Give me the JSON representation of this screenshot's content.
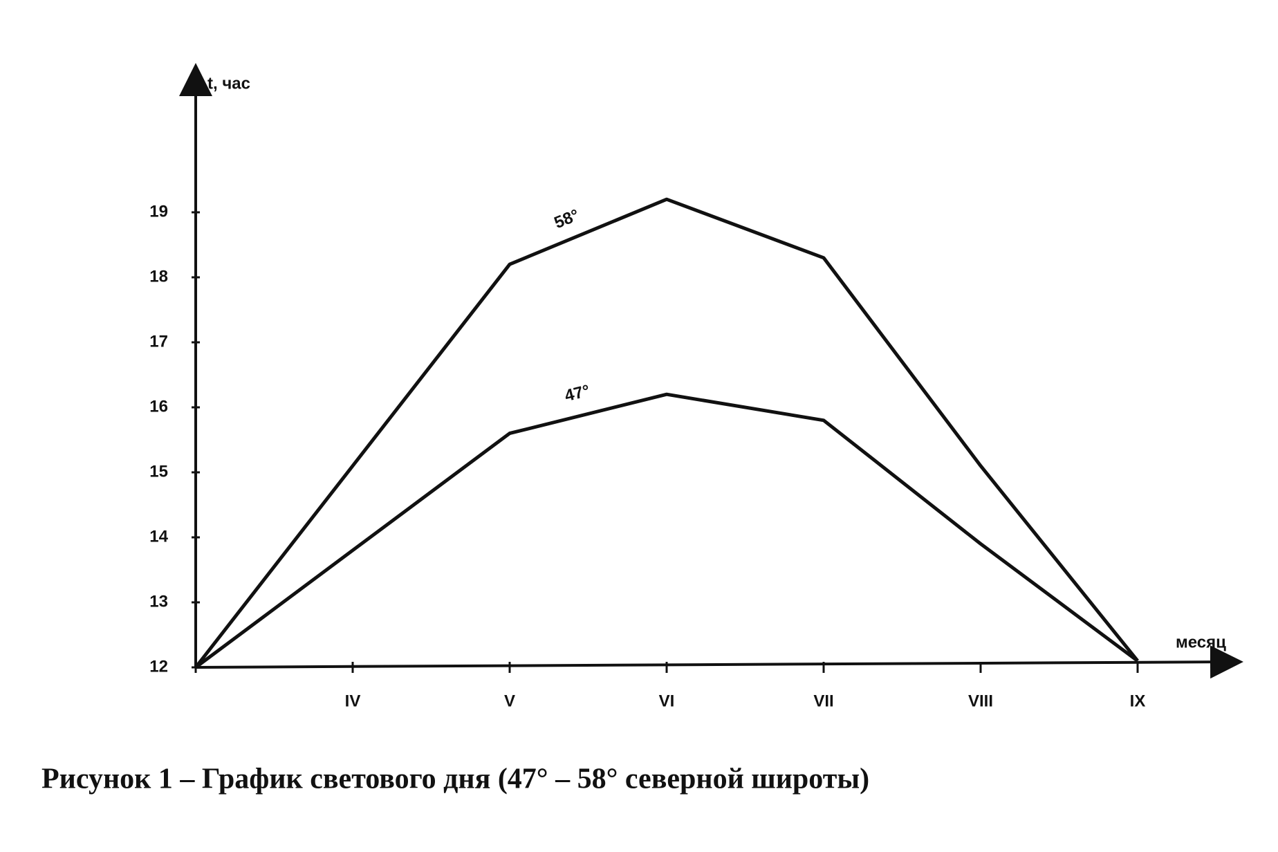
{
  "chart_data": {
    "type": "line",
    "title": "Рисунок 1 – График светового дня (47° – 58° северной широты)",
    "y_label": "t, час",
    "x_label": "месяц",
    "categories": [
      null,
      "IV",
      "V",
      "VI",
      "VII",
      "VIII",
      "IX"
    ],
    "series": [
      {
        "name": "58°",
        "color": "#111111",
        "values": [
          12,
          15.1,
          18.2,
          19.2,
          18.3,
          15.1,
          12.1
        ]
      },
      {
        "name": "47°",
        "color": "#111111",
        "values": [
          12,
          13.8,
          15.6,
          16.2,
          15.8,
          13.9,
          12.1
        ]
      }
    ],
    "ylim": [
      12,
      21
    ],
    "yticks": [
      12,
      13,
      14,
      15,
      16,
      17,
      18,
      19
    ],
    "grid": false
  }
}
